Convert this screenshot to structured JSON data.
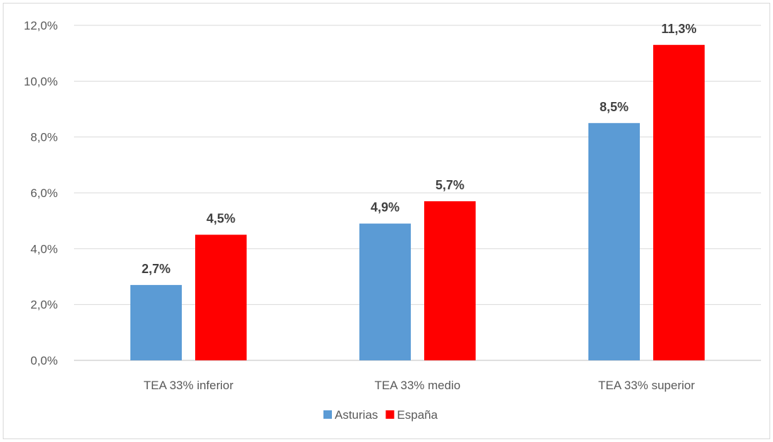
{
  "chart_data": {
    "type": "bar",
    "categories": [
      "TEA 33% inferior",
      "TEA 33% medio",
      "TEA 33% superior"
    ],
    "series": [
      {
        "name": "Asturias",
        "color": "#5b9bd5",
        "values": [
          2.7,
          4.9,
          8.5
        ],
        "labels": [
          "2,7%",
          "4,9%",
          "8,5%"
        ]
      },
      {
        "name": "España",
        "color": "#ff0000",
        "values": [
          4.5,
          5.7,
          11.3
        ],
        "labels": [
          "4,5%",
          "5,7%",
          "11,3%"
        ]
      }
    ],
    "yticks": [
      0,
      2,
      4,
      6,
      8,
      10,
      12
    ],
    "ytick_labels": [
      "0,0%",
      "2,0%",
      "4,0%",
      "6,0%",
      "8,0%",
      "10,0%",
      "12,0%"
    ],
    "ylim": [
      0,
      12
    ],
    "grid": true,
    "legend_position": "bottom",
    "title": "",
    "xlabel": "",
    "ylabel": ""
  }
}
